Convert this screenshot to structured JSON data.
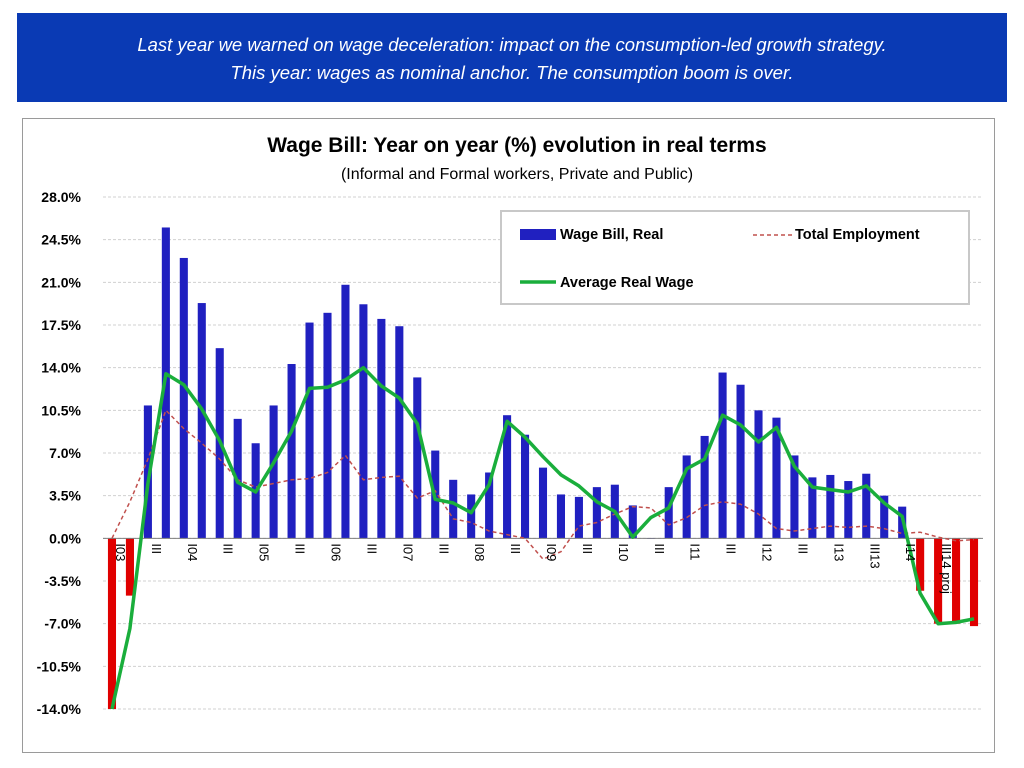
{
  "banner": {
    "line1": "Last year we warned on wage deceleration: impact on the consumption-led growth strategy.",
    "line2": "This year: wages as nominal anchor. The consumption boom is over."
  },
  "colors": {
    "banner_bg": "#0a3ab4",
    "bar_positive": "#2020c0",
    "bar_negative": "#e00000",
    "average_wage_line": "#1aae3c",
    "employment_line": "#c0504d",
    "grid": "#d0d0d0"
  },
  "chart_data": {
    "type": "bar",
    "title": "Wage Bill: Year on year (%) evolution in real terms",
    "subtitle": "(Informal and Formal workers, Private and Public)",
    "ylim": [
      -14.0,
      28.0
    ],
    "yticks": [
      "28.0%",
      "24.5%",
      "21.0%",
      "17.5%",
      "14.0%",
      "10.5%",
      "7.0%",
      "3.5%",
      "0.0%",
      "-3.5%",
      "-7.0%",
      "-10.5%",
      "-14.0%"
    ],
    "ytick_values": [
      28.0,
      24.5,
      21.0,
      17.5,
      14.0,
      10.5,
      7.0,
      3.5,
      0.0,
      -3.5,
      -7.0,
      -10.5,
      -14.0
    ],
    "x_labels": [
      "I03",
      "III",
      "I04",
      "III",
      "I05",
      "III",
      "I06",
      "III",
      "I07",
      "III",
      "I08",
      "III",
      "I09",
      "III",
      "I10",
      "III",
      "I11",
      "III",
      "I12",
      "III",
      "I13",
      "III13",
      "I14",
      "III14 proj"
    ],
    "legend": {
      "wage_bill": "Wage Bill, Real",
      "employment": "Total Employment",
      "average_wage": "Average Real Wage"
    },
    "series": [
      {
        "name": "Wage Bill, Real",
        "type": "bar",
        "values": [
          -14.0,
          -4.7,
          10.9,
          25.5,
          23.0,
          19.3,
          15.6,
          9.8,
          7.8,
          10.9,
          14.3,
          17.7,
          18.5,
          20.8,
          19.2,
          18.0,
          17.4,
          13.2,
          7.2,
          4.8,
          3.6,
          5.4,
          10.1,
          8.5,
          5.8,
          3.6,
          3.4,
          4.2,
          4.4,
          2.7,
          0.0,
          4.2,
          6.8,
          8.4,
          13.6,
          12.6,
          10.5,
          9.9,
          6.8,
          5.0,
          5.2,
          4.7,
          5.3,
          3.5,
          2.6,
          -4.3,
          -7.0,
          -7.0,
          -7.2
        ]
      },
      {
        "name": "Total Employment",
        "type": "line",
        "values": [
          0.0,
          3.0,
          6.5,
          10.5,
          9.0,
          7.8,
          6.5,
          4.8,
          4.2,
          4.5,
          4.8,
          4.9,
          5.4,
          6.8,
          4.8,
          5.0,
          5.1,
          3.3,
          3.9,
          1.6,
          1.3,
          0.6,
          0.3,
          0.0,
          -1.7,
          -1.1,
          1.0,
          1.3,
          2.0,
          2.6,
          2.5,
          1.1,
          1.7,
          2.7,
          3.0,
          2.8,
          2.0,
          0.8,
          0.6,
          0.8,
          1.0,
          0.9,
          1.0,
          0.8,
          0.4,
          0.5,
          0.1,
          -0.2,
          -0.1
        ]
      },
      {
        "name": "Average Real Wage",
        "type": "line",
        "values": [
          -14.0,
          -7.4,
          4.5,
          13.5,
          12.6,
          10.6,
          8.0,
          4.6,
          3.8,
          6.2,
          8.8,
          12.3,
          12.4,
          13.0,
          14.0,
          12.5,
          11.5,
          9.4,
          3.2,
          2.9,
          2.1,
          4.4,
          9.6,
          8.3,
          6.7,
          5.2,
          4.3,
          3.0,
          2.2,
          0.1,
          1.7,
          2.5,
          5.7,
          6.5,
          10.1,
          9.3,
          7.9,
          9.1,
          5.9,
          4.2,
          4.0,
          3.8,
          4.3,
          2.9,
          1.8,
          -4.5,
          -7.0,
          -6.9,
          -6.6
        ]
      }
    ]
  }
}
